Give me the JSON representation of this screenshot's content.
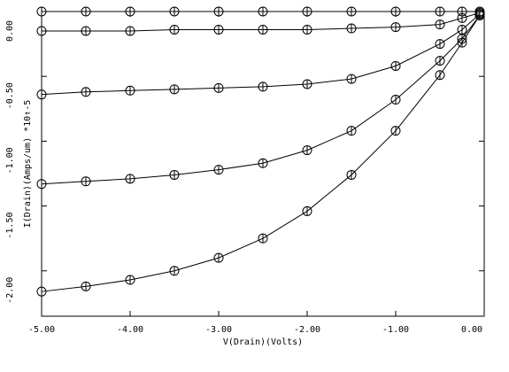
{
  "chart_data": {
    "type": "line",
    "x_label": "V(Drain)(Volts)",
    "y_label": "I(Drain)(Amps/um) *10↑-5",
    "color": "#000000",
    "x": [
      -5,
      -4.5,
      -4,
      -3.5,
      -3,
      -2.5,
      -2,
      -1.5,
      -1,
      -0.5,
      -0.25,
      -0.05
    ],
    "series": [
      {
        "values": [
          0,
          0,
          0,
          0,
          0,
          0,
          0,
          0,
          0,
          0,
          0,
          0
        ]
      },
      {
        "values": [
          -0.15,
          -0.15,
          -0.15,
          -0.14,
          -0.14,
          -0.14,
          -0.14,
          -0.13,
          -0.12,
          -0.1,
          -0.05,
          -0.01
        ]
      },
      {
        "values": [
          -0.64,
          -0.62,
          -0.61,
          -0.6,
          -0.59,
          -0.58,
          -0.56,
          -0.52,
          -0.42,
          -0.25,
          -0.14,
          -0.02
        ]
      },
      {
        "values": [
          -1.33,
          -1.31,
          -1.29,
          -1.26,
          -1.22,
          -1.17,
          -1.07,
          -0.92,
          -0.68,
          -0.38,
          -0.21,
          -0.03
        ]
      },
      {
        "values": [
          -2.16,
          -2.12,
          -2.07,
          -2.0,
          -1.9,
          -1.75,
          -1.54,
          -1.26,
          -0.92,
          -0.49,
          -0.24,
          -0.03
        ]
      }
    ],
    "xlim": [
      -5,
      0
    ],
    "ylim": [
      -2.35,
      0
    ],
    "xticks": [
      {
        "value": -5,
        "label": "-5.00"
      },
      {
        "value": -4,
        "label": "-4.00"
      },
      {
        "value": -3,
        "label": "-3.00"
      },
      {
        "value": -2,
        "label": "-2.00"
      },
      {
        "value": -1,
        "label": "-1.00"
      },
      {
        "value": 0,
        "label": "0.00"
      }
    ],
    "yticks": [
      {
        "value": 0,
        "label": "0.00"
      },
      {
        "value": -0.5,
        "label": "-0.50"
      },
      {
        "value": -1,
        "label": "-1.00"
      },
      {
        "value": -1.5,
        "label": "-1.50"
      },
      {
        "value": -2,
        "label": "-2.00"
      }
    ],
    "markers": true
  }
}
